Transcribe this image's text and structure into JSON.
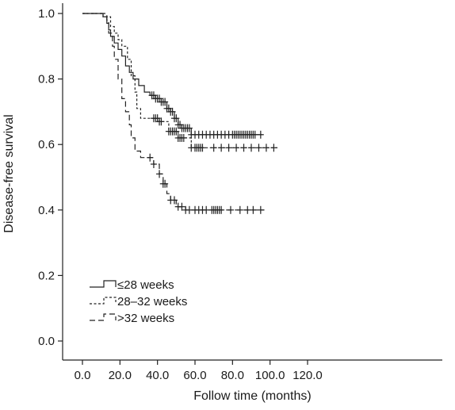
{
  "chart_data": {
    "type": "line",
    "subtype": "kaplan-meier-step",
    "xlabel": "Follow time (months)",
    "ylabel": "Disease-free survival",
    "xlim": [
      0,
      120
    ],
    "ylim": [
      0,
      1
    ],
    "x_ticks": [
      0,
      20,
      40,
      60,
      80,
      100,
      120
    ],
    "x_tick_labels": [
      "0.0",
      "20.0",
      "40.0",
      "60.0",
      "80.0",
      "100.0",
      "120.0"
    ],
    "y_ticks": [
      0,
      0.2,
      0.4,
      0.6,
      0.8,
      1.0
    ],
    "y_tick_labels": [
      "0.0",
      "0.2",
      "0.4",
      "0.6",
      "0.8",
      "1.0"
    ],
    "grid": false,
    "legend_position": "bottom-left",
    "series": [
      {
        "name": "≤28 weeks",
        "line_style": "solid",
        "steps": [
          [
            0,
            1.0
          ],
          [
            11,
            0.99
          ],
          [
            13,
            0.97
          ],
          [
            14,
            0.95
          ],
          [
            15,
            0.93
          ],
          [
            17,
            0.91
          ],
          [
            19,
            0.89
          ],
          [
            21,
            0.87
          ],
          [
            23,
            0.84
          ],
          [
            25,
            0.82
          ],
          [
            27,
            0.8
          ],
          [
            30,
            0.78
          ],
          [
            33,
            0.76
          ],
          [
            36,
            0.75
          ],
          [
            39,
            0.74
          ],
          [
            42,
            0.73
          ],
          [
            45,
            0.71
          ],
          [
            47,
            0.7
          ],
          [
            49,
            0.68
          ],
          [
            51,
            0.66
          ],
          [
            53,
            0.65
          ],
          [
            58,
            0.63
          ],
          [
            96,
            0.63
          ]
        ],
        "censored": [
          37,
          38,
          39,
          40,
          41,
          42,
          43,
          44,
          45,
          46,
          47,
          48,
          49,
          50,
          51,
          52,
          53,
          54,
          55,
          56,
          57,
          58,
          60,
          62,
          64,
          66,
          68,
          70,
          72,
          74,
          76,
          78,
          80,
          81,
          82,
          83,
          84,
          85,
          86,
          87,
          88,
          89,
          90,
          91,
          92,
          95
        ]
      },
      {
        "name": "28–32 weeks",
        "line_style": "short-dash",
        "steps": [
          [
            0,
            1.0
          ],
          [
            11,
            0.99
          ],
          [
            15,
            0.96
          ],
          [
            17,
            0.94
          ],
          [
            19,
            0.92
          ],
          [
            21,
            0.9
          ],
          [
            24,
            0.86
          ],
          [
            26,
            0.81
          ],
          [
            28,
            0.76
          ],
          [
            29,
            0.71
          ],
          [
            31,
            0.68
          ],
          [
            41,
            0.67
          ],
          [
            46,
            0.64
          ],
          [
            51,
            0.62
          ],
          [
            58,
            0.59
          ],
          [
            104,
            0.59
          ]
        ],
        "censored": [
          38,
          39,
          40,
          41,
          42,
          46,
          47,
          48,
          49,
          50,
          51,
          52,
          53,
          54,
          58,
          60,
          61,
          62,
          63,
          64,
          70,
          74,
          78,
          82,
          86,
          90,
          94,
          98,
          102
        ]
      },
      {
        "name": ">32 weeks",
        "line_style": "long-dash",
        "steps": [
          [
            0,
            1.0
          ],
          [
            13,
            0.98
          ],
          [
            14,
            0.94
          ],
          [
            16,
            0.9
          ],
          [
            17,
            0.86
          ],
          [
            19,
            0.8
          ],
          [
            21,
            0.74
          ],
          [
            23,
            0.7
          ],
          [
            25,
            0.66
          ],
          [
            26,
            0.62
          ],
          [
            28,
            0.58
          ],
          [
            31,
            0.56
          ],
          [
            36,
            0.56
          ],
          [
            38,
            0.54
          ],
          [
            41,
            0.51
          ],
          [
            43,
            0.48
          ],
          [
            45,
            0.45
          ],
          [
            47,
            0.43
          ],
          [
            50,
            0.41
          ],
          [
            55,
            0.4
          ],
          [
            97,
            0.4
          ]
        ],
        "censored": [
          36,
          38,
          41,
          43,
          44,
          47,
          49,
          51,
          53,
          55,
          57,
          60,
          62,
          64,
          66,
          69,
          70,
          71,
          72,
          73,
          74,
          79,
          84,
          88,
          91,
          95
        ]
      }
    ]
  }
}
